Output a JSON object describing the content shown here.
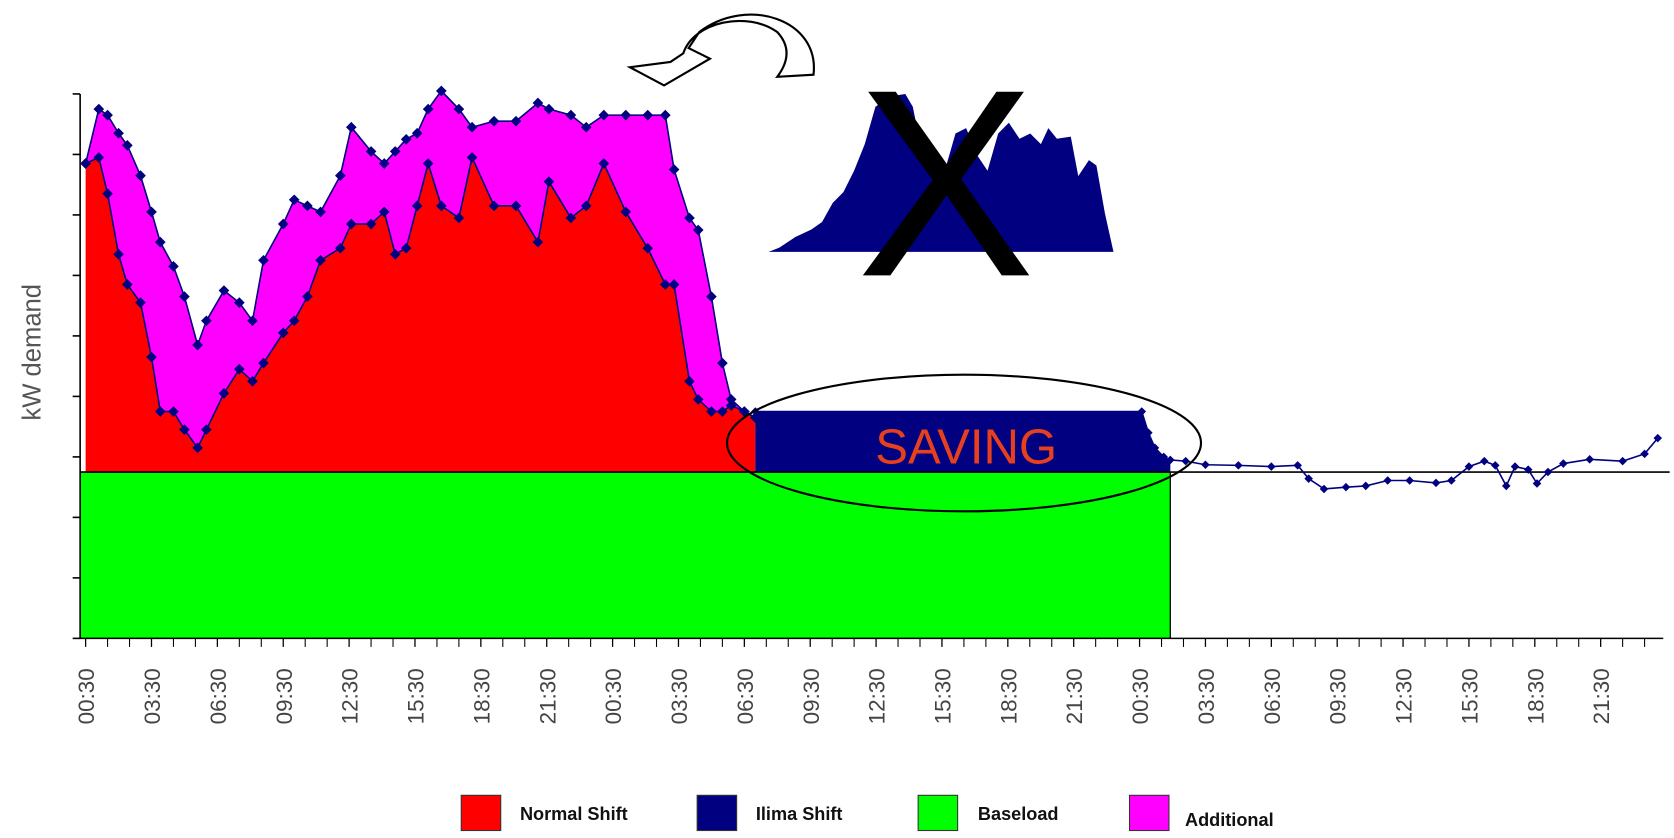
{
  "chart_data": {
    "type": "area",
    "ylabel": "kW demand",
    "legend": "bottom",
    "annotations": [
      "SAVING",
      "X"
    ],
    "xlim": [
      0.25,
      72.35
    ],
    "ylim": [
      0,
      9
    ],
    "yticks": [
      0,
      1,
      2,
      3,
      4,
      5,
      6,
      7,
      8,
      9
    ],
    "xticks": [
      {
        "value": 0.5,
        "label": "00:30"
      },
      {
        "value": 3.5,
        "label": "03:30"
      },
      {
        "value": 6.5,
        "label": "06:30"
      },
      {
        "value": 9.5,
        "label": "09:30"
      },
      {
        "value": 12.5,
        "label": "12:30"
      },
      {
        "value": 15.5,
        "label": "15:30"
      },
      {
        "value": 18.5,
        "label": "18:30"
      },
      {
        "value": 21.5,
        "label": "21:30"
      },
      {
        "value": 24.5,
        "label": "00:30"
      },
      {
        "value": 27.5,
        "label": "03:30"
      },
      {
        "value": 30.5,
        "label": "06:30"
      },
      {
        "value": 33.5,
        "label": "09:30"
      },
      {
        "value": 36.5,
        "label": "12:30"
      },
      {
        "value": 39.5,
        "label": "15:30"
      },
      {
        "value": 42.5,
        "label": "18:30"
      },
      {
        "value": 45.5,
        "label": "21:30"
      },
      {
        "value": 48.5,
        "label": "00:30"
      },
      {
        "value": 51.5,
        "label": "03:30"
      },
      {
        "value": 54.5,
        "label": "06:30"
      },
      {
        "value": 57.5,
        "label": "09:30"
      },
      {
        "value": 60.5,
        "label": "12:30"
      },
      {
        "value": 63.5,
        "label": "15:30"
      },
      {
        "value": 66.5,
        "label": "18:30"
      },
      {
        "value": 69.5,
        "label": "21:30"
      }
    ],
    "series": [
      {
        "name": "Normal Shift",
        "color": "#ff0000",
        "x": [
          0.5,
          1.1,
          1.5,
          2.0,
          2.4,
          3.0,
          3.5,
          3.9,
          4.5,
          5.0,
          5.6,
          6.0,
          6.8,
          7.5,
          8.1,
          8.6,
          9.5,
          10.0,
          10.6,
          11.2,
          12.1,
          12.6,
          13.5,
          14.1,
          14.6,
          15.1,
          15.6,
          16.1,
          16.7,
          17.5,
          18.1,
          19.1,
          20.1,
          21.1,
          21.6,
          22.6,
          23.3,
          24.1,
          25.1,
          26.1,
          26.9,
          27.3,
          28.0,
          28.4,
          29.0,
          29.5,
          29.9,
          30.5,
          31.0
        ],
        "values": [
          5.1,
          5.2,
          4.6,
          3.6,
          3.1,
          2.8,
          1.9,
          1.0,
          1.0,
          0.7,
          0.4,
          0.7,
          1.3,
          1.7,
          1.5,
          1.8,
          2.3,
          2.5,
          2.9,
          3.5,
          3.7,
          4.1,
          4.1,
          4.3,
          3.6,
          3.7,
          4.4,
          5.1,
          4.4,
          4.2,
          5.2,
          4.4,
          4.4,
          3.8,
          4.8,
          4.2,
          4.4,
          5.1,
          4.3,
          3.7,
          3.1,
          3.1,
          1.5,
          1.2,
          1.0,
          1.0,
          1.1,
          1.0,
          0.9
        ]
      },
      {
        "name": "Ilima Shift",
        "color": "#000080",
        "x": [
          31.0,
          48.6,
          48.9,
          49.2,
          49.6,
          49.9,
          50.6,
          51.5,
          53.0,
          54.5,
          55.7,
          56.2,
          56.9,
          57.9,
          58.8,
          59.8,
          60.8,
          62.0,
          62.7,
          63.5,
          64.2,
          64.7,
          65.2,
          65.6,
          66.2,
          66.6,
          67.1,
          67.8,
          69.0,
          70.5,
          71.5,
          72.1
        ],
        "values": [
          1.0,
          1.0,
          0.65,
          0.4,
          0.25,
          0.2,
          0.18,
          0.12,
          0.11,
          0.09,
          0.11,
          -0.11,
          -0.28,
          -0.25,
          -0.23,
          -0.14,
          -0.14,
          -0.18,
          -0.14,
          0.09,
          0.18,
          0.11,
          -0.23,
          0.09,
          0.04,
          -0.19,
          0,
          0.14,
          0.21,
          0.18,
          0.3,
          0.56
        ]
      },
      {
        "name": "Baseload",
        "color": "#00ff00",
        "x": [
          0.25,
          49.9
        ],
        "values": [
          2.75,
          2.75
        ]
      },
      {
        "name": "Additional",
        "color": "#ff00ff",
        "x": [
          0.5,
          1.1,
          1.5,
          2.0,
          2.4,
          3.0,
          3.5,
          3.9,
          4.5,
          5.0,
          5.6,
          6.0,
          6.8,
          7.5,
          8.1,
          8.6,
          9.5,
          10.0,
          10.6,
          11.2,
          12.1,
          12.6,
          13.5,
          14.1,
          14.6,
          15.1,
          15.6,
          16.1,
          16.7,
          17.5,
          18.1,
          19.1,
          20.1,
          21.1,
          21.6,
          22.6,
          23.3,
          24.1,
          25.1,
          26.1,
          26.9,
          27.3,
          28.0,
          28.4,
          29.0,
          29.5,
          29.9,
          30.5,
          31.0
        ],
        "values": [
          0,
          0.8,
          1.3,
          2.0,
          2.3,
          2.1,
          2.4,
          2.8,
          2.4,
          2.2,
          1.7,
          1.8,
          1.7,
          1.1,
          1.0,
          1.7,
          1.8,
          2.0,
          1.5,
          0.8,
          1.2,
          1.6,
          1.2,
          0.8,
          1.7,
          1.8,
          1.2,
          0.9,
          1.9,
          1.8,
          0.5,
          1.4,
          1.4,
          2.3,
          1.2,
          1.7,
          1.3,
          0.8,
          1.6,
          2.2,
          2.8,
          1.9,
          2.7,
          2.8,
          1.9,
          0.8,
          0.1,
          0,
          0
        ]
      }
    ]
  }
}
